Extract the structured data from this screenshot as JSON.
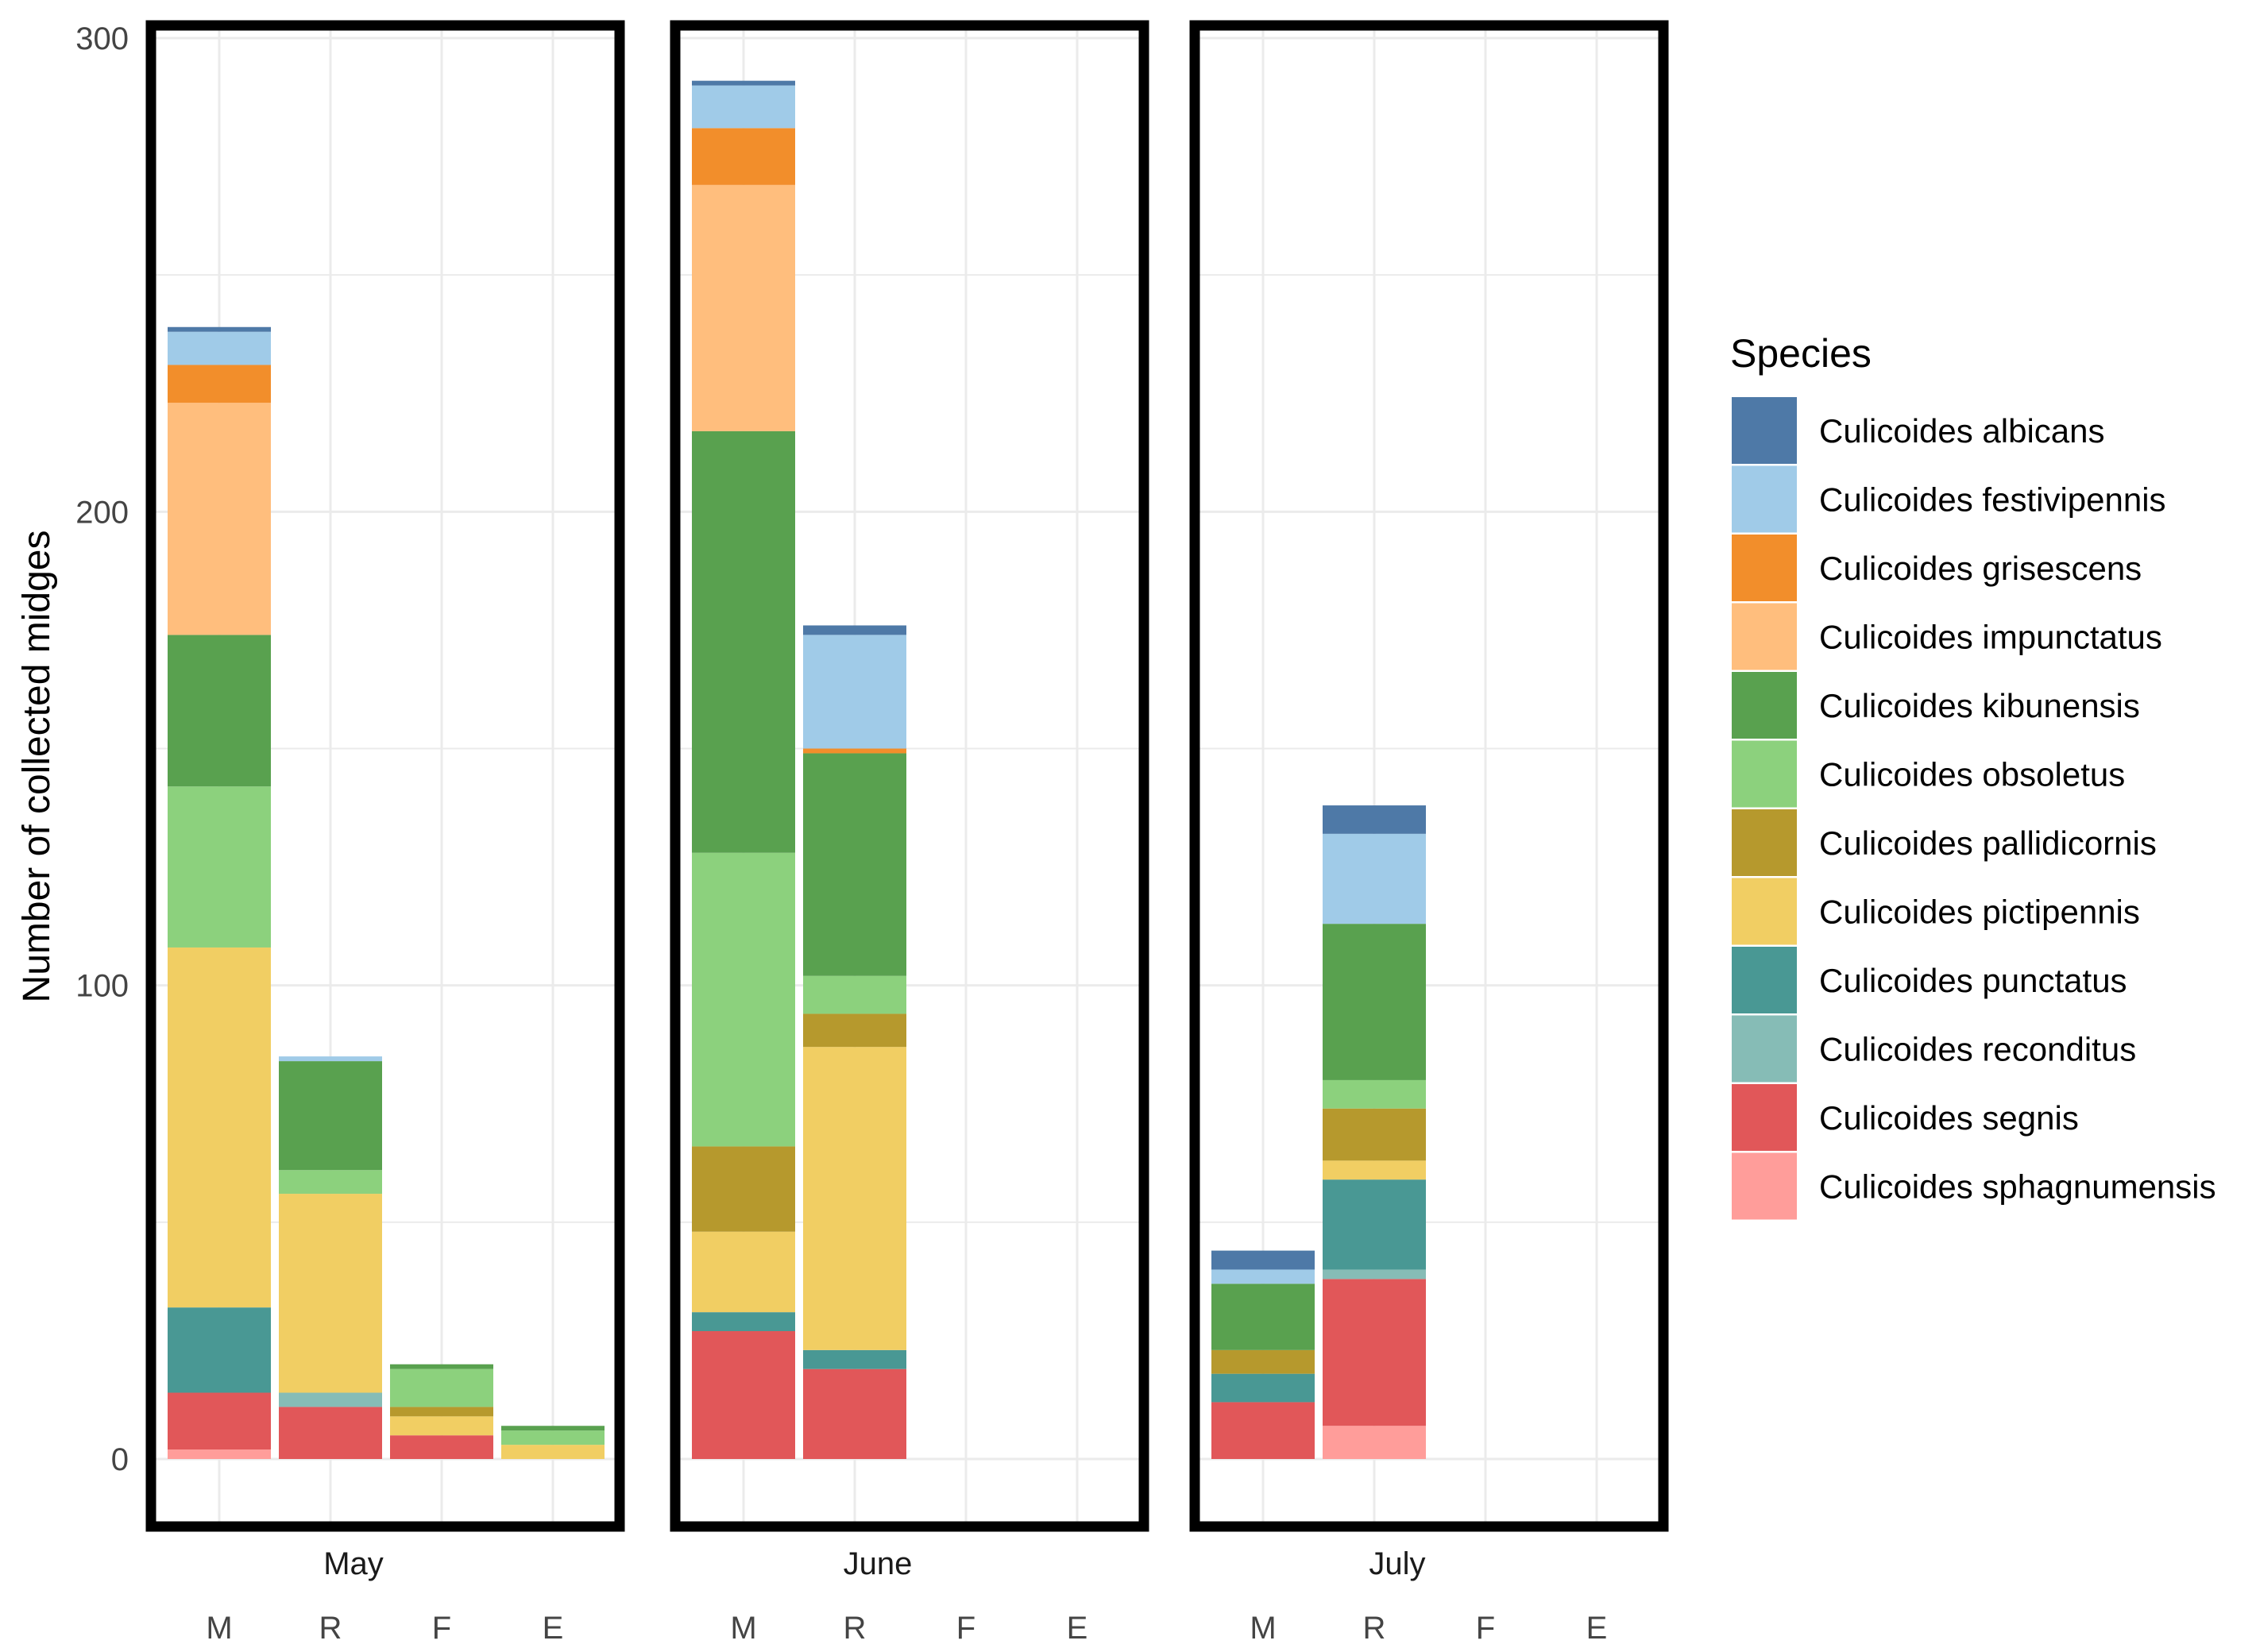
{
  "chart_data": {
    "type": "bar",
    "stacked": true,
    "faceted": true,
    "ylabel": "Number of collected midges",
    "ylim": [
      0,
      300
    ],
    "y_ticks": [
      "0",
      "100",
      "200",
      "300"
    ],
    "grid": true,
    "legend_title": "Species",
    "legend_position": "right",
    "facets": [
      "May",
      "June",
      "July"
    ],
    "categories": [
      "M",
      "R",
      "F",
      "E"
    ],
    "species": [
      {
        "name": "Culicoides albicans",
        "color": "#4e79a7"
      },
      {
        "name": "Culicoides festivipennis",
        "color": "#a0cbe8"
      },
      {
        "name": "Culicoides grisescens",
        "color": "#f28e2b"
      },
      {
        "name": "Culicoides impunctatus",
        "color": "#ffbe7d"
      },
      {
        "name": "Culicoides kibunensis",
        "color": "#59a14f"
      },
      {
        "name": "Culicoides obsoletus",
        "color": "#8cd17d"
      },
      {
        "name": "Culicoides pallidicornis",
        "color": "#b6992d"
      },
      {
        "name": "Culicoides pictipennis",
        "color": "#f1ce63"
      },
      {
        "name": "Culicoides punctatus",
        "color": "#499894"
      },
      {
        "name": "Culicoides reconditus",
        "color": "#86bcb6"
      },
      {
        "name": "Culicoides segnis",
        "color": "#e15759"
      },
      {
        "name": "Culicoides sphagnumensis",
        "color": "#ff9d9a"
      }
    ],
    "stack_order_bottom_to_top": [
      "Culicoides sphagnumensis",
      "Culicoides segnis",
      "Culicoides reconditus",
      "Culicoides punctatus",
      "Culicoides pictipennis",
      "Culicoides pallidicornis",
      "Culicoides obsoletus",
      "Culicoides kibunensis",
      "Culicoides impunctatus",
      "Culicoides grisescens",
      "Culicoides festivipennis",
      "Culicoides albicans"
    ],
    "data": {
      "May": {
        "M": {
          "Culicoides sphagnumensis": 2,
          "Culicoides segnis": 12,
          "Culicoides punctatus": 18,
          "Culicoides pictipennis": 76,
          "Culicoides obsoletus": 34,
          "Culicoides kibunensis": 32,
          "Culicoides impunctatus": 49,
          "Culicoides grisescens": 8,
          "Culicoides festivipennis": 7,
          "Culicoides albicans": 1
        },
        "R": {
          "Culicoides segnis": 11,
          "Culicoides reconditus": 3,
          "Culicoides pictipennis": 42,
          "Culicoides obsoletus": 5,
          "Culicoides kibunensis": 23,
          "Culicoides festivipennis": 1
        },
        "F": {
          "Culicoides segnis": 5,
          "Culicoides pictipennis": 4,
          "Culicoides pallidicornis": 2,
          "Culicoides obsoletus": 8,
          "Culicoides kibunensis": 1
        },
        "E": {
          "Culicoides pictipennis": 3,
          "Culicoides obsoletus": 3,
          "Culicoides kibunensis": 1
        }
      },
      "June": {
        "M": {
          "Culicoides segnis": 27,
          "Culicoides punctatus": 4,
          "Culicoides pictipennis": 17,
          "Culicoides pallidicornis": 18,
          "Culicoides obsoletus": 62,
          "Culicoides kibunensis": 89,
          "Culicoides impunctatus": 52,
          "Culicoides grisescens": 12,
          "Culicoides festivipennis": 9,
          "Culicoides albicans": 1
        },
        "R": {
          "Culicoides segnis": 19,
          "Culicoides punctatus": 4,
          "Culicoides pictipennis": 64,
          "Culicoides pallidicornis": 7,
          "Culicoides obsoletus": 8,
          "Culicoides kibunensis": 47,
          "Culicoides grisescens": 1,
          "Culicoides festivipennis": 24,
          "Culicoides albicans": 2
        },
        "F": {},
        "E": {}
      },
      "July": {
        "M": {
          "Culicoides segnis": 12,
          "Culicoides punctatus": 6,
          "Culicoides pallidicornis": 5,
          "Culicoides kibunensis": 14,
          "Culicoides festivipennis": 3,
          "Culicoides albicans": 4
        },
        "R": {
          "Culicoides sphagnumensis": 7,
          "Culicoides segnis": 31,
          "Culicoides reconditus": 2,
          "Culicoides punctatus": 19,
          "Culicoides pictipennis": 4,
          "Culicoides pallidicornis": 11,
          "Culicoides obsoletus": 6,
          "Culicoides kibunensis": 33,
          "Culicoides festivipennis": 19,
          "Culicoides albicans": 6
        },
        "F": {},
        "E": {}
      }
    }
  }
}
